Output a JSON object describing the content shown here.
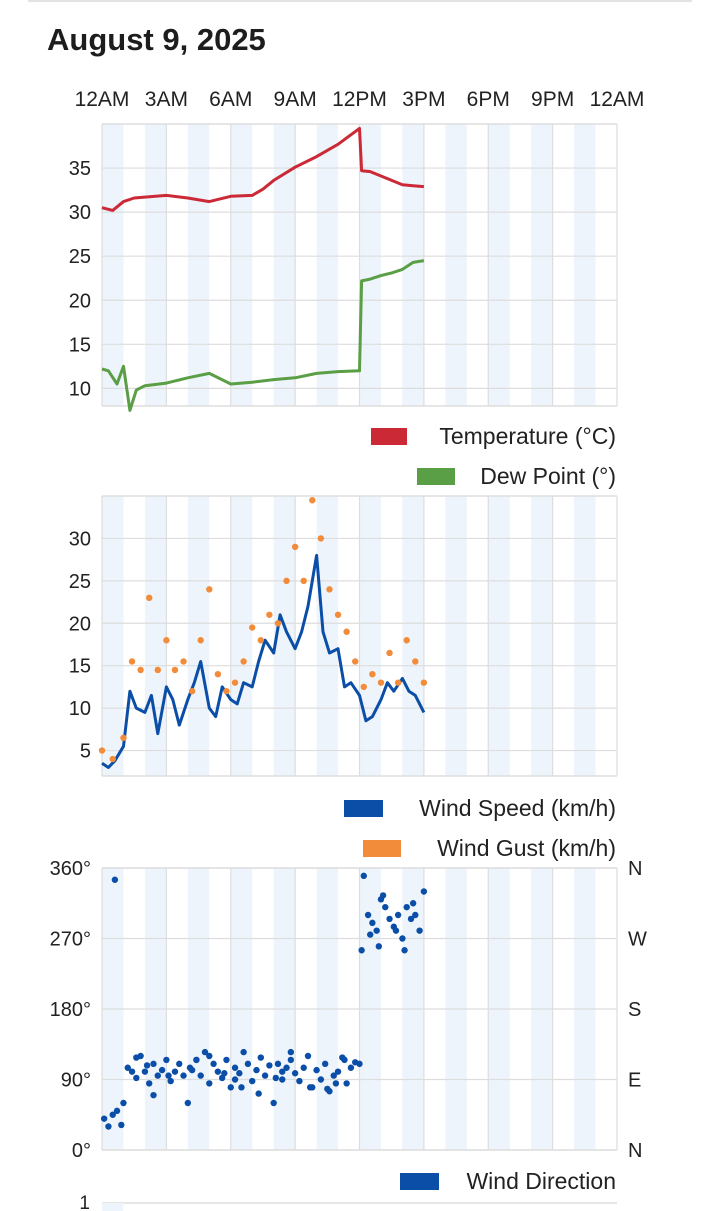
{
  "page": {
    "date_title": "August 9, 2025"
  },
  "time_axis": [
    "12AM",
    "3AM",
    "6AM",
    "9AM",
    "12PM",
    "3PM",
    "6PM",
    "9PM",
    "12AM"
  ],
  "colors": {
    "temperature": "#cc2936",
    "dew_point": "#5a9e45",
    "wind_speed": "#0b4ea8",
    "wind_gust": "#f28b3a",
    "wind_direction": "#0b4ea8",
    "band": "#edf4fb",
    "grid": "#dddddd"
  },
  "chart_data": [
    {
      "type": "line",
      "title": "",
      "x_unit": "hours since 12AM",
      "xlim": [
        0,
        24
      ],
      "ylim": [
        8,
        40
      ],
      "yticks": [
        10,
        15,
        20,
        25,
        30,
        35
      ],
      "legend": [
        "Temperature (°C)",
        "Dew Point (°)"
      ],
      "series": [
        {
          "name": "Temperature (°C)",
          "color": "#cc2936",
          "x": [
            0,
            0.5,
            1,
            1.5,
            2,
            3,
            4,
            5,
            6,
            7,
            7.5,
            8,
            9,
            10,
            11,
            12,
            12.1,
            12.5,
            13,
            13.5,
            14,
            14.5,
            15
          ],
          "y": [
            30.5,
            30.2,
            31.2,
            31.6,
            31.7,
            31.9,
            31.6,
            31.2,
            31.8,
            31.9,
            32.6,
            33.6,
            35.1,
            36.3,
            37.7,
            39.5,
            34.7,
            34.6,
            34.1,
            33.6,
            33.1,
            33.0,
            32.9
          ]
        },
        {
          "name": "Dew Point (°)",
          "color": "#5a9e45",
          "x": [
            0,
            0.3,
            0.7,
            1,
            1.3,
            1.6,
            2,
            3,
            4,
            5,
            6,
            6.5,
            7,
            8,
            9,
            10,
            11,
            12,
            12.1,
            12.5,
            13,
            13.5,
            14,
            14.5,
            15
          ],
          "y": [
            12.2,
            12.0,
            10.5,
            12.5,
            7.5,
            9.8,
            10.3,
            10.6,
            11.2,
            11.7,
            10.5,
            10.6,
            10.7,
            11.0,
            11.2,
            11.7,
            11.9,
            12.0,
            22.2,
            22.4,
            22.8,
            23.1,
            23.5,
            24.3,
            24.5
          ]
        }
      ]
    },
    {
      "type": "line",
      "title": "",
      "x_unit": "hours since 12AM",
      "xlim": [
        0,
        24
      ],
      "ylim": [
        2,
        35
      ],
      "yticks": [
        5,
        10,
        15,
        20,
        25,
        30
      ],
      "legend": [
        "Wind Speed (km/h)",
        "Wind Gust (km/h)"
      ],
      "series": [
        {
          "name": "Wind Speed (km/h)",
          "color": "#0b4ea8",
          "x": [
            0,
            0.3,
            0.6,
            1,
            1.3,
            1.6,
            2,
            2.3,
            2.6,
            3,
            3.3,
            3.6,
            4,
            4.3,
            4.6,
            5,
            5.3,
            5.6,
            6,
            6.3,
            6.6,
            7,
            7.3,
            7.6,
            8,
            8.3,
            8.6,
            9,
            9.3,
            9.6,
            10,
            10.3,
            10.6,
            11,
            11.3,
            11.6,
            12,
            12.3,
            12.6,
            13,
            13.3,
            13.6,
            14,
            14.3,
            14.6,
            15
          ],
          "y": [
            3.5,
            3.0,
            3.8,
            5.5,
            12.0,
            10.0,
            9.5,
            11.5,
            7.0,
            12.5,
            11.0,
            8.0,
            11.0,
            13.0,
            15.5,
            10.0,
            9.0,
            12.5,
            11.0,
            10.5,
            13.0,
            12.5,
            15.5,
            18.0,
            16.5,
            21.0,
            19.0,
            17.0,
            19.0,
            22.0,
            28.0,
            19.0,
            16.5,
            17.0,
            12.5,
            13.0,
            11.5,
            8.5,
            9.0,
            11.0,
            13.0,
            12.0,
            13.5,
            12.0,
            11.5,
            9.5
          ]
        },
        {
          "name": "Wind Gust (km/h)",
          "color": "#f28b3a",
          "style": "points",
          "x": [
            0,
            0.5,
            1,
            1.4,
            1.8,
            2.2,
            2.6,
            3,
            3.4,
            3.8,
            4.2,
            4.6,
            5,
            5.4,
            5.8,
            6.2,
            6.6,
            7,
            7.4,
            7.8,
            8.2,
            8.6,
            9,
            9.4,
            9.8,
            10.2,
            10.6,
            11,
            11.4,
            11.8,
            12.2,
            12.6,
            13,
            13.4,
            13.8,
            14.2,
            14.6,
            15
          ],
          "y": [
            5.0,
            4.0,
            6.5,
            15.5,
            14.5,
            23.0,
            14.5,
            18.0,
            14.5,
            15.5,
            12.0,
            18.0,
            24.0,
            14.0,
            12.0,
            13.0,
            15.5,
            19.5,
            18.0,
            21.0,
            20.0,
            25.0,
            29.0,
            25.0,
            34.5,
            30.0,
            24.0,
            21.0,
            19.0,
            15.5,
            12.5,
            14.0,
            13.0,
            16.5,
            13.0,
            18.0,
            15.5,
            13.0
          ]
        }
      ]
    },
    {
      "type": "scatter",
      "title": "",
      "x_unit": "hours since 12AM",
      "xlim": [
        0,
        24
      ],
      "ylim": [
        0,
        360
      ],
      "yticks": [
        "0°",
        "90°",
        "180°",
        "270°",
        "360°"
      ],
      "right_ticks": [
        "N",
        "E",
        "S",
        "W",
        "N"
      ],
      "legend": [
        "Wind Direction"
      ],
      "series": [
        {
          "name": "Wind Direction",
          "color": "#0b4ea8",
          "x": [
            0.1,
            0.3,
            0.5,
            0.7,
            0.9,
            1.0,
            1.2,
            1.4,
            1.6,
            1.8,
            2.0,
            2.2,
            2.4,
            2.6,
            2.8,
            3.0,
            3.2,
            3.4,
            3.6,
            3.8,
            4.0,
            4.2,
            4.4,
            4.6,
            4.8,
            5.0,
            5.2,
            5.4,
            5.6,
            5.8,
            6.0,
            6.2,
            6.4,
            6.6,
            6.8,
            7.0,
            7.2,
            7.4,
            7.6,
            7.8,
            8.0,
            8.2,
            8.4,
            8.6,
            8.8,
            9.0,
            9.2,
            9.4,
            9.6,
            9.8,
            10.0,
            10.2,
            10.4,
            10.6,
            10.8,
            11.0,
            11.2,
            11.4,
            11.6,
            11.8,
            12.0,
            12.2,
            12.4,
            12.6,
            12.8,
            13.0,
            13.2,
            13.4,
            13.6,
            13.8,
            14.0,
            14.2,
            14.4,
            14.6,
            14.8,
            15.0,
            0.6,
            1.6,
            2.4,
            3.1,
            4.1,
            5.0,
            5.7,
            6.5,
            7.3,
            8.1,
            8.8,
            9.7,
            10.5,
            11.3,
            12.1,
            12.9,
            13.7,
            14.5,
            2.1,
            4.4,
            6.2,
            8.4,
            10.9,
            12.5,
            13.1,
            14.1
          ],
          "y": [
            40,
            30,
            45,
            50,
            32,
            60,
            105,
            100,
            92,
            120,
            100,
            85,
            110,
            95,
            102,
            115,
            88,
            100,
            110,
            95,
            60,
            102,
            115,
            95,
            125,
            85,
            110,
            100,
            92,
            115,
            80,
            105,
            98,
            125,
            110,
            88,
            102,
            118,
            95,
            108,
            60,
            110,
            90,
            105,
            115,
            98,
            88,
            105,
            120,
            80,
            102,
            90,
            110,
            75,
            95,
            100,
            118,
            85,
            105,
            112,
            110,
            350,
            300,
            290,
            280,
            320,
            310,
            295,
            285,
            300,
            270,
            310,
            295,
            300,
            280,
            330,
            345,
            118,
            70,
            95,
            105,
            120,
            98,
            80,
            72,
            92,
            125,
            80,
            78,
            115,
            255,
            260,
            280,
            315,
            108,
            115,
            90,
            100,
            85,
            275,
            325,
            255
          ]
        }
      ]
    },
    {
      "type": "line",
      "title": "",
      "yticks": [
        "1"
      ],
      "legend": []
    }
  ]
}
